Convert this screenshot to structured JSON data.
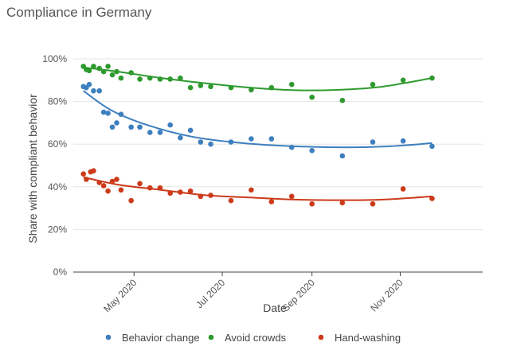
{
  "chart_data": {
    "type": "scatter",
    "title": "Compliance in Germany",
    "xlabel": "Date",
    "ylabel": "Share with compliant behavior",
    "xlim": [
      "2020-03-20",
      "2020-12-28"
    ],
    "ylim": [
      0,
      100
    ],
    "y_ticks": [
      "0%",
      "20%",
      "40%",
      "60%",
      "80%",
      "100%"
    ],
    "x_ticks": [
      {
        "date": "2020-05-01",
        "label": "May 2020"
      },
      {
        "date": "2020-07-01",
        "label": "Jul 2020"
      },
      {
        "date": "2020-09-01",
        "label": "Sep 2020"
      },
      {
        "date": "2020-11-01",
        "label": "Nov 2020"
      }
    ],
    "grid": "horizontal",
    "legend_position": "bottom",
    "series": [
      {
        "name": "Behavior change",
        "color": "#3d7fbf",
        "points": [
          [
            "2020-03-27",
            87
          ],
          [
            "2020-03-29",
            86.5
          ],
          [
            "2020-03-31",
            88
          ],
          [
            "2020-04-03",
            85
          ],
          [
            "2020-04-07",
            85
          ],
          [
            "2020-04-10",
            75
          ],
          [
            "2020-04-13",
            74.5
          ],
          [
            "2020-04-16",
            68
          ],
          [
            "2020-04-19",
            70
          ],
          [
            "2020-04-22",
            74
          ],
          [
            "2020-04-29",
            68
          ],
          [
            "2020-05-05",
            68
          ],
          [
            "2020-05-12",
            65.5
          ],
          [
            "2020-05-19",
            65.5
          ],
          [
            "2020-05-26",
            69
          ],
          [
            "2020-06-02",
            63
          ],
          [
            "2020-06-09",
            66.5
          ],
          [
            "2020-06-16",
            61
          ],
          [
            "2020-06-23",
            60
          ],
          [
            "2020-07-07",
            61
          ],
          [
            "2020-07-21",
            62.5
          ],
          [
            "2020-08-04",
            62.5
          ],
          [
            "2020-08-18",
            58.5
          ],
          [
            "2020-09-01",
            57
          ],
          [
            "2020-09-22",
            54.5
          ],
          [
            "2020-10-13",
            61
          ],
          [
            "2020-11-03",
            61.5
          ],
          [
            "2020-11-23",
            59
          ]
        ],
        "trend": [
          [
            "2020-03-27",
            85
          ],
          [
            "2020-04-15",
            76
          ],
          [
            "2020-05-10",
            69
          ],
          [
            "2020-06-10",
            63.5
          ],
          [
            "2020-07-15",
            60.5
          ],
          [
            "2020-08-20",
            59
          ],
          [
            "2020-09-25",
            58.5
          ],
          [
            "2020-10-25",
            59
          ],
          [
            "2020-11-23",
            60.5
          ]
        ]
      },
      {
        "name": "Avoid crowds",
        "color": "#2e9a2e",
        "points": [
          [
            "2020-03-27",
            96.5
          ],
          [
            "2020-03-29",
            95
          ],
          [
            "2020-03-31",
            94.5
          ],
          [
            "2020-04-03",
            96.5
          ],
          [
            "2020-04-07",
            95.5
          ],
          [
            "2020-04-10",
            94
          ],
          [
            "2020-04-13",
            96.5
          ],
          [
            "2020-04-16",
            92.5
          ],
          [
            "2020-04-19",
            94
          ],
          [
            "2020-04-22",
            91
          ],
          [
            "2020-04-29",
            93.5
          ],
          [
            "2020-05-05",
            90.5
          ],
          [
            "2020-05-12",
            91
          ],
          [
            "2020-05-19",
            90.5
          ],
          [
            "2020-05-26",
            90.5
          ],
          [
            "2020-06-02",
            91
          ],
          [
            "2020-06-09",
            86.5
          ],
          [
            "2020-06-16",
            87.5
          ],
          [
            "2020-06-23",
            87
          ],
          [
            "2020-07-07",
            86.5
          ],
          [
            "2020-07-21",
            85.5
          ],
          [
            "2020-08-04",
            86.5
          ],
          [
            "2020-08-18",
            88
          ],
          [
            "2020-09-01",
            82
          ],
          [
            "2020-09-22",
            80.5
          ],
          [
            "2020-10-13",
            88
          ],
          [
            "2020-11-03",
            90
          ],
          [
            "2020-11-23",
            91
          ]
        ],
        "trend": [
          [
            "2020-03-27",
            96
          ],
          [
            "2020-04-20",
            94
          ],
          [
            "2020-05-20",
            91
          ],
          [
            "2020-06-20",
            88.5
          ],
          [
            "2020-07-20",
            86.5
          ],
          [
            "2020-08-20",
            85.3
          ],
          [
            "2020-09-20",
            85.5
          ],
          [
            "2020-10-20",
            87
          ],
          [
            "2020-11-23",
            91
          ]
        ]
      },
      {
        "name": "Hand-washing",
        "color": "#cc3a1a",
        "points": [
          [
            "2020-03-27",
            46
          ],
          [
            "2020-03-29",
            43.5
          ],
          [
            "2020-04-01",
            47
          ],
          [
            "2020-04-03",
            47.5
          ],
          [
            "2020-04-07",
            42
          ],
          [
            "2020-04-10",
            40.5
          ],
          [
            "2020-04-13",
            38
          ],
          [
            "2020-04-16",
            42.5
          ],
          [
            "2020-04-19",
            43.5
          ],
          [
            "2020-04-22",
            38.5
          ],
          [
            "2020-04-29",
            33.5
          ],
          [
            "2020-05-05",
            41.5
          ],
          [
            "2020-05-12",
            39.5
          ],
          [
            "2020-05-19",
            39.5
          ],
          [
            "2020-05-26",
            37
          ],
          [
            "2020-06-02",
            37.5
          ],
          [
            "2020-06-09",
            38
          ],
          [
            "2020-06-16",
            35.5
          ],
          [
            "2020-06-23",
            36
          ],
          [
            "2020-07-07",
            33.5
          ],
          [
            "2020-07-21",
            38.5
          ],
          [
            "2020-08-04",
            33
          ],
          [
            "2020-08-18",
            35.5
          ],
          [
            "2020-09-01",
            32
          ],
          [
            "2020-09-22",
            32.5
          ],
          [
            "2020-10-13",
            32
          ],
          [
            "2020-11-03",
            39
          ],
          [
            "2020-11-23",
            34.5
          ]
        ],
        "trend": [
          [
            "2020-03-27",
            44.5
          ],
          [
            "2020-04-20",
            41
          ],
          [
            "2020-05-20",
            38.5
          ],
          [
            "2020-06-20",
            36
          ],
          [
            "2020-07-20",
            35
          ],
          [
            "2020-08-20",
            34
          ],
          [
            "2020-09-20",
            33.7
          ],
          [
            "2020-10-20",
            34
          ],
          [
            "2020-11-23",
            35.5
          ]
        ]
      }
    ]
  }
}
